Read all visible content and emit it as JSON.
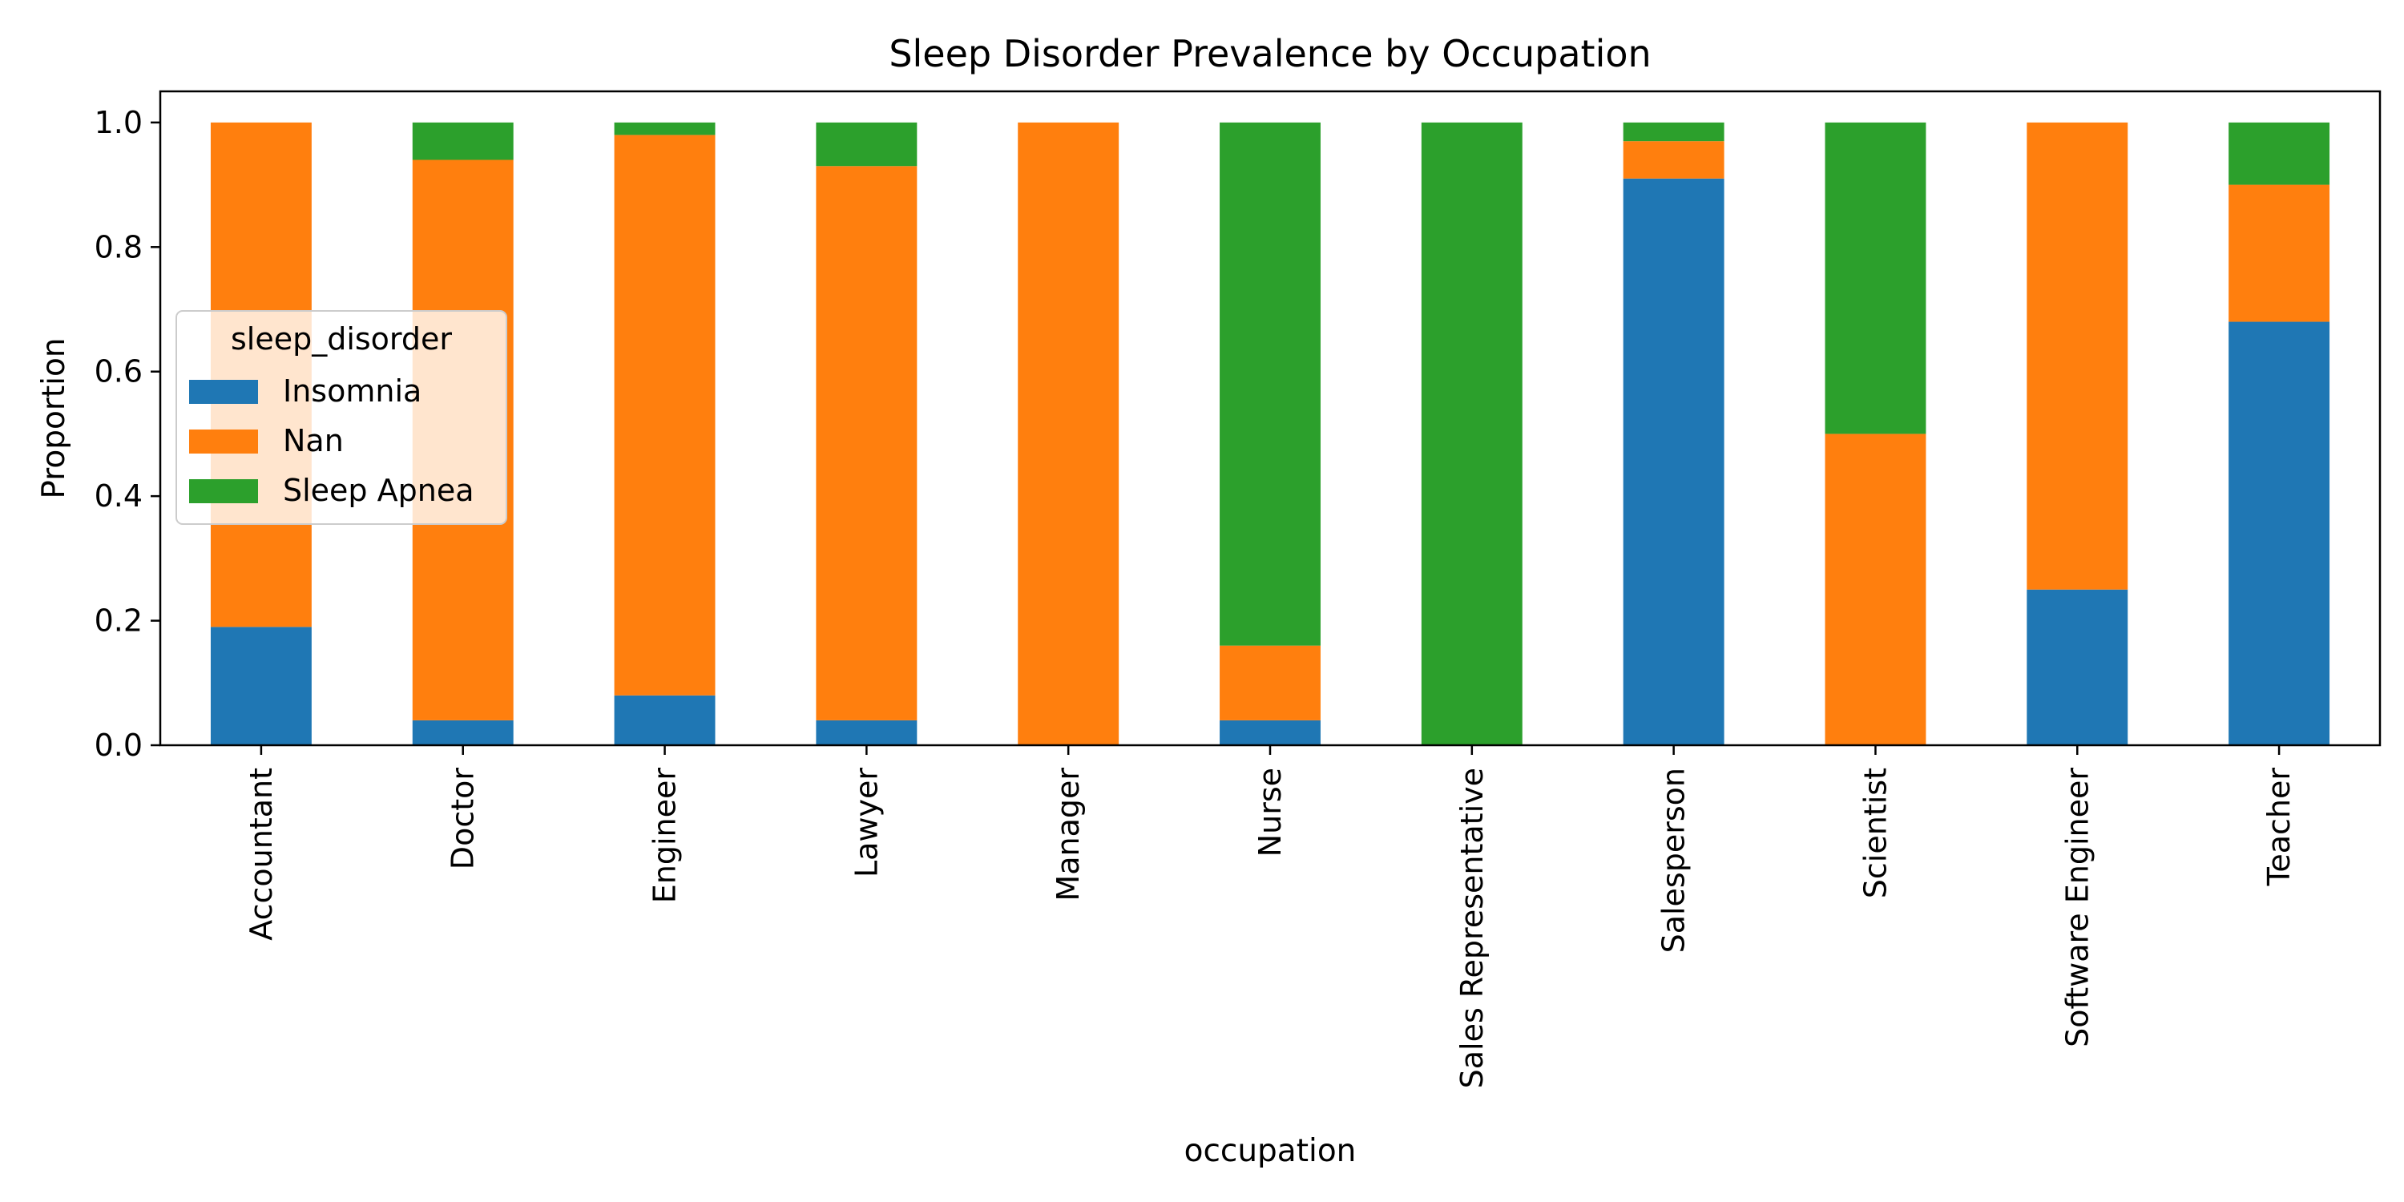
{
  "chart_data": {
    "type": "bar",
    "stacked": true,
    "title": "Sleep Disorder Prevalence by Occupation",
    "xlabel": "occupation",
    "ylabel": "Proportion",
    "ylim": [
      0,
      1.05
    ],
    "yticks": [
      "0.0",
      "0.2",
      "0.4",
      "0.6",
      "0.8",
      "1.0"
    ],
    "categories": [
      "Accountant",
      "Doctor",
      "Engineer",
      "Lawyer",
      "Manager",
      "Nurse",
      "Sales Representative",
      "Salesperson",
      "Scientist",
      "Software Engineer",
      "Teacher"
    ],
    "series": [
      {
        "name": "Insomnia",
        "color": "#1f77b4",
        "values": [
          0.19,
          0.04,
          0.08,
          0.04,
          0.0,
          0.04,
          0.0,
          0.91,
          0.0,
          0.25,
          0.68
        ]
      },
      {
        "name": "Nan",
        "color": "#ff7f0e",
        "values": [
          0.81,
          0.9,
          0.9,
          0.89,
          1.0,
          0.12,
          0.0,
          0.06,
          0.5,
          0.75,
          0.22
        ]
      },
      {
        "name": "Sleep Apnea",
        "color": "#2ca02c",
        "values": [
          0.0,
          0.06,
          0.02,
          0.07,
          0.0,
          0.84,
          1.0,
          0.03,
          0.5,
          0.0,
          0.1
        ]
      }
    ],
    "legend": {
      "title": "sleep_disorder",
      "placement": "center-left"
    },
    "grid": false
  }
}
